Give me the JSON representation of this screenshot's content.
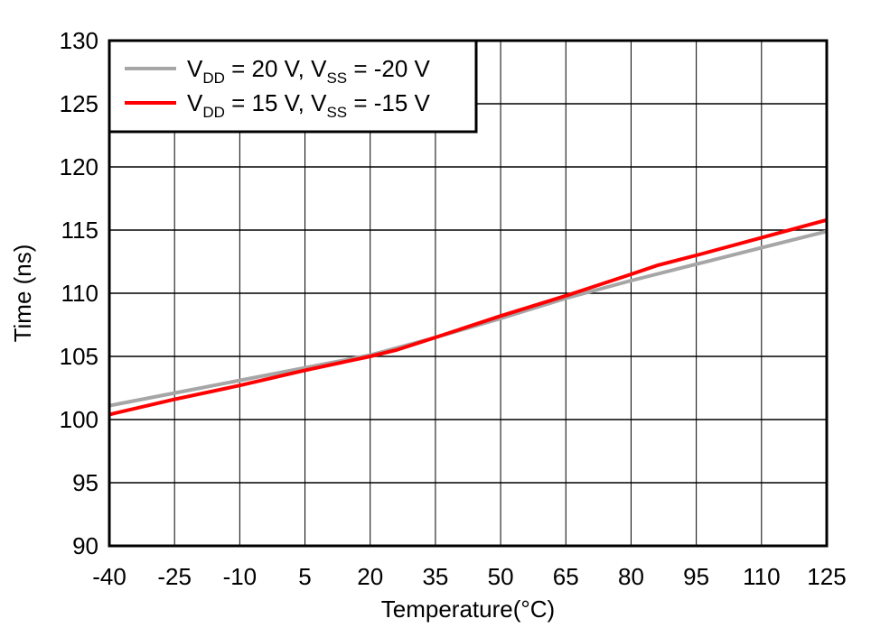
{
  "chart_data": {
    "type": "line",
    "title": "",
    "xlabel": "Temperature(°C)",
    "xlabel_parts": {
      "main": "Temperature(",
      "sup": "o",
      "end": "C)"
    },
    "ylabel": "Time (ns)",
    "xlim": [
      -40,
      125
    ],
    "ylim": [
      90,
      130
    ],
    "xticks": [
      -40,
      -25,
      -10,
      5,
      20,
      35,
      50,
      65,
      80,
      95,
      110,
      125
    ],
    "yticks": [
      90,
      95,
      100,
      105,
      110,
      115,
      120,
      125,
      130
    ],
    "grid": true,
    "legend_position": "top-left",
    "series": [
      {
        "name": "VDD = 20 V, VSS = -20 V",
        "legend": {
          "v1": "V",
          "s1": "DD",
          "m1": " = 20 V, V",
          "s2": "SS",
          "m2": " = -20 V"
        },
        "color": "#A6A6A6",
        "x": [
          -40,
          -25,
          -10,
          5,
          20,
          35,
          50,
          65,
          80,
          95,
          110,
          125
        ],
        "y": [
          101.1,
          102.1,
          103.1,
          104.1,
          105.1,
          106.5,
          108.0,
          109.6,
          111.0,
          112.3,
          113.6,
          114.9
        ]
      },
      {
        "name": "VDD = 15 V, VSS = -15 V",
        "legend": {
          "v1": "V",
          "s1": "DD",
          "m1": " = 15 V, V",
          "s2": "SS",
          "m2": " = -15 V"
        },
        "color": "#FF0000",
        "x": [
          -40,
          -25,
          -10,
          5,
          20,
          26,
          35,
          50,
          65,
          80,
          86,
          95,
          110,
          125
        ],
        "y": [
          100.4,
          101.6,
          102.7,
          103.9,
          105.0,
          105.5,
          106.5,
          108.2,
          109.8,
          111.5,
          112.2,
          113.0,
          114.4,
          115.8
        ]
      }
    ]
  }
}
